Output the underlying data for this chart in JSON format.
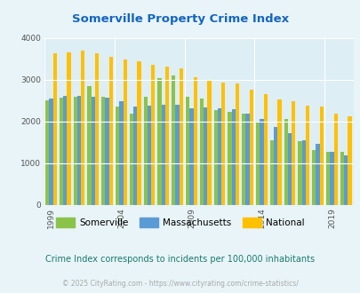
{
  "title": "Somerville Property Crime Index",
  "years": [
    1999,
    2000,
    2001,
    2002,
    2003,
    2004,
    2005,
    2006,
    2007,
    2008,
    2009,
    2010,
    2011,
    2012,
    2013,
    2014,
    2015,
    2016,
    2017,
    2018,
    2019,
    2020
  ],
  "somerville": [
    2500,
    2580,
    2600,
    2860,
    2600,
    2350,
    2200,
    2600,
    3050,
    3100,
    2600,
    2550,
    2280,
    2230,
    2200,
    2000,
    1560,
    2060,
    1530,
    1310,
    1270,
    1280
  ],
  "massachusetts": [
    2560,
    2620,
    2620,
    2600,
    2570,
    2480,
    2370,
    2390,
    2400,
    2400,
    2310,
    2340,
    2310,
    2290,
    2190,
    2060,
    1870,
    1720,
    1560,
    1460,
    1270,
    1200
  ],
  "national": [
    3640,
    3660,
    3700,
    3640,
    3560,
    3490,
    3440,
    3370,
    3310,
    3280,
    3060,
    3000,
    2940,
    2910,
    2770,
    2660,
    2540,
    2490,
    2390,
    2350,
    2200,
    2120
  ],
  "somerville_color": "#8bc34a",
  "massachusetts_color": "#5b9bd5",
  "national_color": "#ffc000",
  "bg_color": "#e8f4f8",
  "plot_bg": "#ddeef5",
  "grid_color": "#ffffff",
  "ylabel_ticks": [
    0,
    1000,
    2000,
    3000,
    4000
  ],
  "x_tick_years": [
    1999,
    2004,
    2009,
    2014,
    2019
  ],
  "subtitle": "Crime Index corresponds to incidents per 100,000 inhabitants",
  "footer": "© 2025 CityRating.com - https://www.cityrating.com/crime-statistics/",
  "title_color": "#1565c0",
  "subtitle_color": "#1a7a6e",
  "footer_color": "#aaaaaa"
}
